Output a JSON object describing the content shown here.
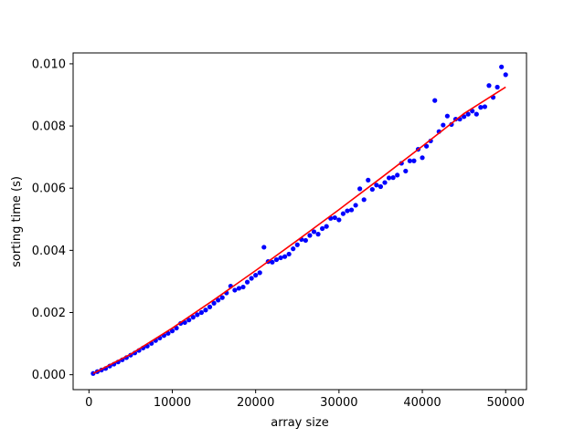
{
  "chart_data": {
    "type": "scatter",
    "xlabel": "array size",
    "ylabel": "sorting time (s)",
    "xlim": [
      -1900,
      52500
    ],
    "ylim": [
      -0.00048,
      0.01035
    ],
    "xticks": [
      0,
      10000,
      20000,
      30000,
      40000,
      50000
    ],
    "xtick_labels": [
      "0",
      "10000",
      "20000",
      "30000",
      "40000",
      "50000"
    ],
    "yticks": [
      0.0,
      0.002,
      0.004,
      0.006,
      0.008,
      0.01
    ],
    "ytick_labels": [
      "0.000",
      "0.002",
      "0.004",
      "0.006",
      "0.008",
      "0.010"
    ],
    "grid": false,
    "legend": false,
    "series": [
      {
        "kind": "points",
        "color": "#0000ff",
        "x": [
          500,
          1000,
          1500,
          2000,
          2500,
          3000,
          3500,
          4000,
          4500,
          5000,
          5500,
          6000,
          6500,
          7000,
          7500,
          8000,
          8500,
          9000,
          9500,
          10000,
          10500,
          11000,
          11500,
          12000,
          12500,
          13000,
          13500,
          14000,
          14500,
          15000,
          15500,
          16000,
          16500,
          17000,
          17500,
          18000,
          18500,
          19000,
          19500,
          20000,
          20500,
          21000,
          21500,
          22000,
          22500,
          23000,
          23500,
          24000,
          24500,
          25000,
          25500,
          26000,
          26500,
          27000,
          27500,
          28000,
          28500,
          29000,
          29500,
          30000,
          30500,
          31000,
          31500,
          32000,
          32500,
          33000,
          33500,
          34000,
          34500,
          35000,
          35500,
          36000,
          36500,
          37000,
          37500,
          38000,
          38500,
          39000,
          39500,
          40000,
          40500,
          41000,
          41500,
          42000,
          42500,
          43000,
          43500,
          44000,
          44500,
          45000,
          45500,
          46000,
          46500,
          47000,
          47500,
          48000,
          48500,
          49000,
          49500,
          50000
        ],
        "y": [
          4e-05,
          0.0001,
          0.00015,
          0.0002,
          0.00028,
          0.00034,
          0.00041,
          0.00048,
          0.00055,
          0.00063,
          0.0007,
          0.00078,
          0.00086,
          0.00092,
          0.00101,
          0.0011,
          0.00118,
          0.00126,
          0.00133,
          0.00141,
          0.0015,
          0.00165,
          0.00168,
          0.00176,
          0.00185,
          0.00193,
          0.002,
          0.00208,
          0.00218,
          0.0023,
          0.0024,
          0.00248,
          0.00263,
          0.00285,
          0.00272,
          0.00278,
          0.00282,
          0.00298,
          0.0031,
          0.0032,
          0.00328,
          0.0041,
          0.00364,
          0.00362,
          0.0037,
          0.00376,
          0.0038,
          0.00388,
          0.00405,
          0.00418,
          0.00435,
          0.00432,
          0.00448,
          0.0046,
          0.00452,
          0.0047,
          0.00477,
          0.00503,
          0.00505,
          0.00498,
          0.00518,
          0.00527,
          0.0053,
          0.00545,
          0.00598,
          0.00563,
          0.00626,
          0.00596,
          0.0061,
          0.00605,
          0.00618,
          0.00633,
          0.00634,
          0.00642,
          0.0068,
          0.00655,
          0.00688,
          0.00688,
          0.00725,
          0.00698,
          0.00735,
          0.00752,
          0.00882,
          0.00782,
          0.00803,
          0.00832,
          0.00805,
          0.00822,
          0.00822,
          0.0083,
          0.00838,
          0.00848,
          0.00838,
          0.0086,
          0.00862,
          0.0093,
          0.00892,
          0.00925,
          0.0099,
          0.00965
        ]
      },
      {
        "kind": "line",
        "color": "#ff0000",
        "x": [
          500,
          5000,
          10000,
          15000,
          20000,
          25000,
          30000,
          35000,
          40000,
          45000,
          50000
        ],
        "y": [
          4e-05,
          0.00066,
          0.0015,
          0.00241,
          0.00335,
          0.00432,
          0.00531,
          0.00632,
          0.00735,
          0.0084,
          0.00925
        ]
      }
    ]
  }
}
